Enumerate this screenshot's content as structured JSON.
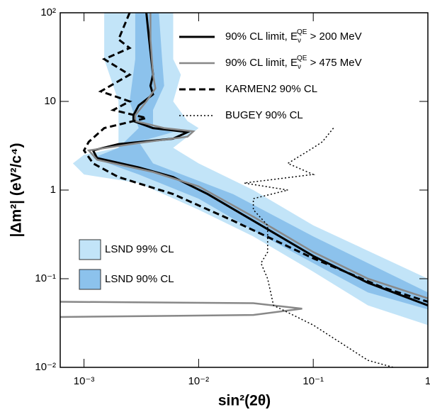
{
  "chart_data": {
    "type": "exclusion",
    "xlabel": "sin²(2θ)",
    "ylabel": "|Δm²| (eV²/c⁴)",
    "xscale": "log",
    "yscale": "log",
    "xlim": [
      0.00062,
      1
    ],
    "ylim": [
      0.01,
      100
    ],
    "xticks": [
      {
        "value": 0.001,
        "label": "10⁻³"
      },
      {
        "value": 0.01,
        "label": "10⁻²"
      },
      {
        "value": 0.1,
        "label": "10⁻¹"
      },
      {
        "value": 1,
        "label": "1"
      }
    ],
    "yticks": [
      {
        "value": 0.01,
        "label": "10⁻²"
      },
      {
        "value": 0.1,
        "label": "10⁻¹"
      },
      {
        "value": 1,
        "label": "1"
      },
      {
        "value": 10,
        "label": "10"
      },
      {
        "value": 100,
        "label": "10²"
      }
    ],
    "regions": [
      {
        "name": "LSND 99% CL",
        "color": "#c2e4f8",
        "x": [
          0.0015,
          0.006,
          0.006,
          0.007,
          0.006,
          0.008,
          0.01,
          0.006,
          0.01,
          0.03,
          0.1,
          1,
          1,
          0.3,
          0.1,
          0.03,
          0.01,
          0.003,
          0.001,
          0.0008,
          0.001,
          0.002,
          0.002,
          0.0015
        ],
        "y": [
          100,
          100,
          30,
          20,
          10,
          6,
          5,
          3,
          2,
          1,
          0.4,
          0.1,
          0.03,
          0.05,
          0.12,
          0.3,
          0.6,
          1.2,
          1.5,
          2,
          2.5,
          3,
          10,
          30
        ]
      },
      {
        "name": "LSND 90% CL",
        "color": "#8cc2ec",
        "x": [
          0.0028,
          0.0045,
          0.0048,
          0.005,
          0.004,
          0.004,
          0.006,
          0.003,
          0.004,
          0.02,
          0.1,
          1,
          1,
          0.3,
          0.1,
          0.03,
          0.01,
          0.003,
          0.0012,
          0.002,
          0.003,
          0.0025,
          0.0028
        ],
        "y": [
          100,
          100,
          30,
          15,
          8,
          5,
          4.5,
          3.5,
          2,
          0.9,
          0.3,
          0.07,
          0.045,
          0.07,
          0.15,
          0.35,
          0.8,
          1.5,
          2.3,
          3,
          5,
          10,
          30
        ]
      }
    ],
    "series": [
      {
        "name": "90% CL limit, E_ν^QE > 200 MeV",
        "color": "#000000",
        "dash": "solid",
        "width": 3,
        "x": [
          0.0035,
          0.0037,
          0.004,
          0.0038,
          0.004,
          0.003,
          0.0027,
          0.0027,
          0.004,
          0.008,
          0.006,
          0.002,
          0.0012,
          0.0013,
          0.003,
          0.006,
          0.012,
          0.03,
          0.1,
          0.3,
          1
        ],
        "y": [
          100,
          50,
          20,
          15,
          12,
          9,
          7,
          6,
          5,
          4.5,
          3.8,
          3.3,
          2.8,
          2.3,
          1.8,
          1.4,
          0.9,
          0.45,
          0.18,
          0.09,
          0.05
        ]
      },
      {
        "name": "90% CL limit, E_ν^QE > 475 MeV",
        "color": "#888888",
        "dash": "solid",
        "width": 2.5,
        "x": [
          0.0038,
          0.0038,
          0.004,
          0.0042,
          0.0035,
          0.0028,
          0.0028,
          0.005,
          0.009,
          0.008,
          0.003,
          0.0011,
          0.0013,
          0.004,
          0.01,
          0.03,
          0.1,
          0.3,
          1,
          null,
          0.00062,
          0.03,
          0.08,
          0.03,
          0.00062
        ],
        "y": [
          100,
          50,
          20,
          14,
          10,
          7,
          6,
          5,
          4.6,
          4,
          3.4,
          2.8,
          2.2,
          1.6,
          1.1,
          0.5,
          0.2,
          0.1,
          0.06,
          null,
          0.055,
          0.053,
          0.046,
          0.039,
          0.037
        ]
      },
      {
        "name": "KARMEN2 90% CL",
        "color": "#000000",
        "dash": "dashed",
        "width": 3,
        "x": [
          0.0025,
          0.002,
          0.0025,
          0.0015,
          0.0025,
          0.0014,
          0.0025,
          0.0018,
          0.0035,
          0.0015,
          0.0011,
          0.001,
          0.0012,
          0.002,
          0.006,
          0.02,
          0.1,
          0.4,
          1
        ],
        "y": [
          100,
          50,
          40,
          30,
          20,
          13,
          10,
          8,
          6.5,
          5,
          3.5,
          2.8,
          2,
          1.4,
          0.9,
          0.45,
          0.17,
          0.08,
          0.055
        ]
      },
      {
        "name": "BUGEY 90% CL",
        "color": "#000000",
        "dash": "dotted",
        "width": 1.5,
        "x": [
          0.15,
          0.12,
          0.1,
          0.06,
          0.1,
          0.025,
          0.06,
          0.03,
          0.03,
          0.04,
          0.04,
          0.035,
          0.04,
          0.045,
          0.1,
          0.3,
          0.5
        ],
        "y": [
          5,
          3.5,
          3,
          2,
          1.5,
          1.2,
          1,
          0.8,
          0.6,
          0.4,
          0.2,
          0.15,
          0.1,
          0.05,
          0.03,
          0.012,
          0.01
        ]
      }
    ]
  }
}
